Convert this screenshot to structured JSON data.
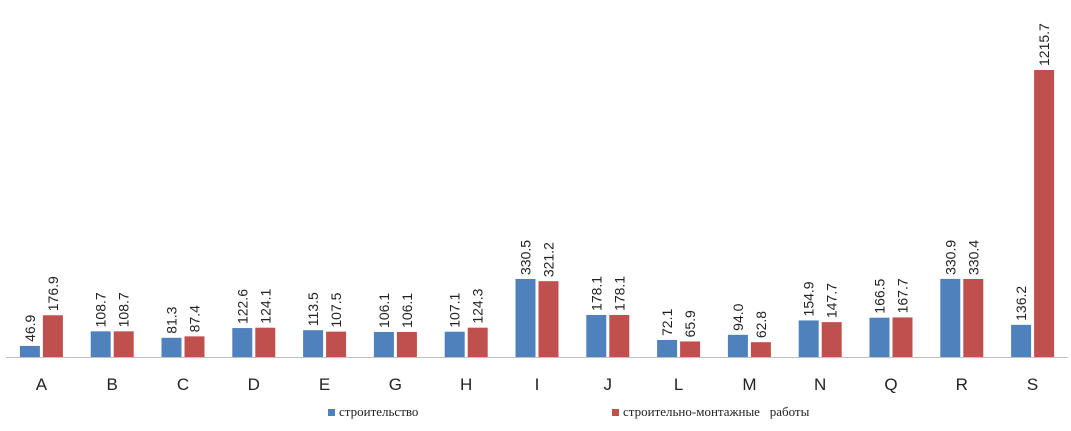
{
  "chart_data": {
    "type": "bar",
    "title": "",
    "xlabel": "",
    "ylabel": "",
    "ylim": [
      0,
      1215.7
    ],
    "grid": false,
    "legend_position": "bottom",
    "categories": [
      "A",
      "B",
      "C",
      "D",
      "E",
      "G",
      "H",
      "I",
      "J",
      "L",
      "M",
      "N",
      "Q",
      "R",
      "S"
    ],
    "series": [
      {
        "name": "строительство",
        "color": "#4F81BD",
        "values": [
          46.9,
          108.7,
          81.3,
          122.6,
          113.5,
          106.1,
          107.1,
          330.5,
          178.1,
          72.1,
          94.0,
          154.9,
          166.5,
          330.9,
          136.2
        ],
        "labels": [
          "46.9",
          "108.7",
          "81.3",
          "122.6",
          "113.5",
          "106.1",
          "107.1",
          "330.5",
          "178.1",
          "72.1",
          "94.0",
          "154.9",
          "166.5",
          "330.9",
          "136.2"
        ]
      },
      {
        "name": "строительно-монтажные   работы",
        "color": "#C0504D",
        "values": [
          176.9,
          108.7,
          87.4,
          124.1,
          107.5,
          106.1,
          124.3,
          321.2,
          178.1,
          65.9,
          62.8,
          147.7,
          167.7,
          330.4,
          1215.7
        ],
        "labels": [
          "176.9",
          "108.7",
          "87.4",
          "124.1",
          "107.5",
          "106.1",
          "124.3",
          "321.2",
          "178.1",
          "65.9",
          "62.8",
          "147.7",
          "167.7",
          "330.4",
          "1215.7"
        ]
      }
    ]
  }
}
